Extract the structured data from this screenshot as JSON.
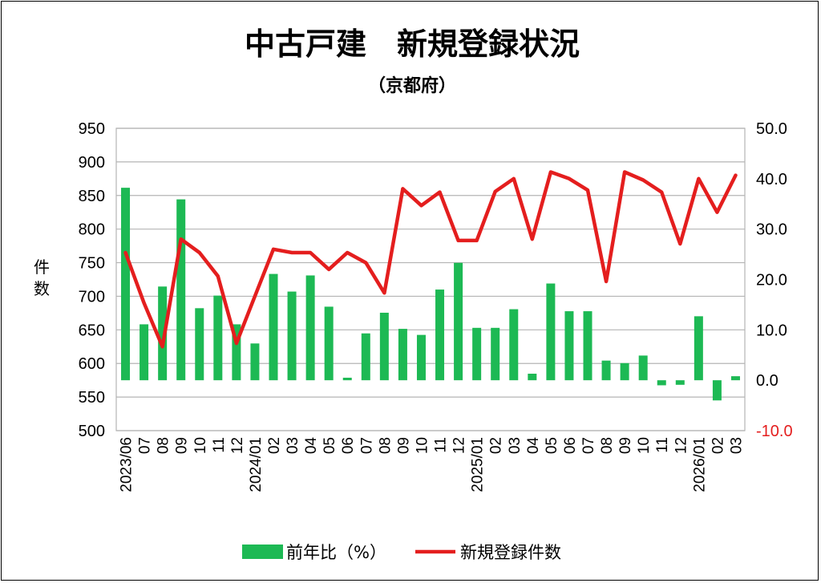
{
  "chart_data": {
    "type": "bar+line",
    "title": "中古戸建　新規登録状況",
    "subtitle": "（京都府）",
    "ylabel_left": "件\n数",
    "left_axis": {
      "min": 500,
      "max": 950,
      "step": 50,
      "ticks": [
        "950",
        "900",
        "850",
        "800",
        "750",
        "700",
        "650",
        "600",
        "550",
        "500"
      ]
    },
    "right_axis": {
      "min": -10,
      "max": 50,
      "step": 10,
      "ticks": [
        "50.0",
        "40.0",
        "30.0",
        "20.0",
        "10.0",
        "0.0",
        "-10.0"
      ]
    },
    "categories": [
      "2023/06",
      "07",
      "08",
      "09",
      "10",
      "11",
      "12",
      "2024/01",
      "02",
      "03",
      "04",
      "05",
      "06",
      "07",
      "08",
      "09",
      "10",
      "11",
      "12",
      "2025/01",
      "02",
      "03",
      "04",
      "05",
      "06",
      "07",
      "08",
      "09",
      "10",
      "11",
      "12",
      "2026/01",
      "02",
      "03"
    ],
    "series": [
      {
        "name": "前年比(%)",
        "type": "bar",
        "axis": "right",
        "color": "#1db954",
        "values": [
          38.2,
          11.1,
          18.6,
          35.9,
          14.3,
          16.8,
          11.1,
          7.3,
          21.1,
          17.6,
          20.8,
          14.6,
          0.5,
          9.3,
          13.4,
          10.2,
          9.0,
          18.0,
          23.3,
          10.4,
          10.4,
          14.1,
          1.3,
          19.2,
          13.7,
          13.7,
          3.9,
          3.4,
          4.9,
          -1.0,
          -0.9,
          12.7,
          -4.0,
          0.8
        ]
      },
      {
        "name": "新規登録件数",
        "type": "line",
        "axis": "left",
        "color": "#e41e1e",
        "values": [
          765,
          690,
          625,
          785,
          765,
          730,
          630,
          700,
          770,
          765,
          765,
          740,
          765,
          750,
          705,
          860,
          835,
          855,
          783,
          783,
          856,
          875,
          785,
          885,
          875,
          858,
          722,
          885,
          873,
          855,
          778,
          875,
          825,
          880
        ]
      }
    ],
    "legend": {
      "position": "bottom",
      "items": [
        {
          "label": "前年比（%）",
          "color": "#1db954"
        },
        {
          "label": "新規登録件数",
          "color": "#e41e1e"
        }
      ]
    },
    "grid": true
  }
}
